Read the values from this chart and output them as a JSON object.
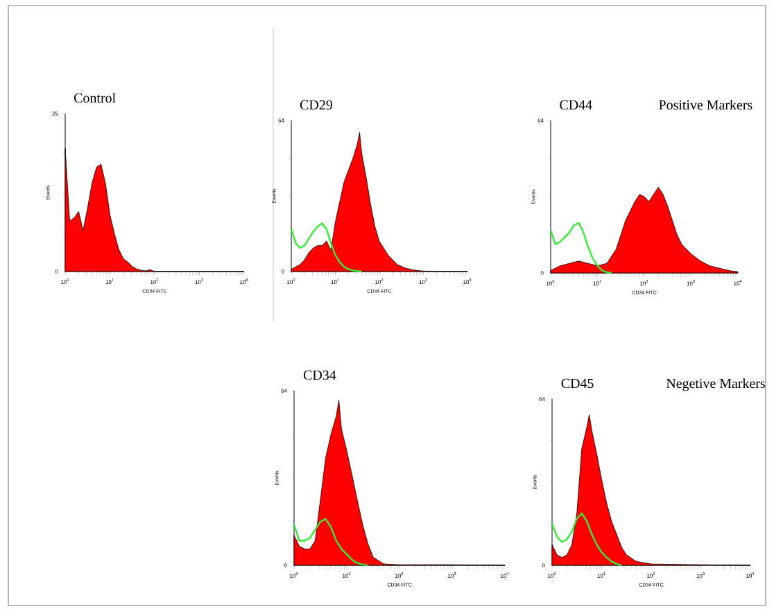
{
  "chart_data": [
    {
      "type": "area",
      "title": "Control",
      "xlabel": "CD34 FITC",
      "ylabel": "Events",
      "log": "x",
      "xlim": [
        1,
        10000
      ],
      "xticks": [
        {
          "value": 1,
          "label": "10$^{0}$"
        },
        {
          "value": 10,
          "label": "10$^{1}$"
        },
        {
          "value": 100,
          "label": "10$^{2}$"
        },
        {
          "value": 1000,
          "label": "10$^{3}$"
        },
        {
          "value": 10000,
          "label": "10$^{4}$"
        }
      ],
      "ylim": [
        0,
        25
      ],
      "yticks": [
        0,
        {
          "value": 6.25,
          "label": null
        },
        {
          "value": 12.5,
          "label": null
        },
        {
          "value": 18.75,
          "label": null
        },
        25
      ],
      "series": [
        {
          "color": "#ff0000",
          "x": [
            1,
            1.26,
            1.58,
            2,
            2.51,
            3.16,
            3.98,
            5.01,
            6.31,
            7.94,
            10,
            12.6,
            15.8,
            20,
            25.1,
            31.6,
            39.8,
            50.1,
            63.1,
            79.4,
            100,
            1000,
            10000
          ],
          "values": [
            19.5,
            8,
            8.5,
            9.5,
            6.5,
            10,
            14,
            16.5,
            17,
            14,
            9,
            6,
            3.5,
            2,
            1.5,
            0.8,
            0.4,
            0.2,
            0.1,
            0.3,
            0,
            0,
            0
          ]
        }
      ]
    },
    {
      "type": "area",
      "title": "CD29",
      "xlabel": "CD34 FITC",
      "ylabel": "Events",
      "log": "x",
      "xlim": [
        1,
        10000
      ],
      "xticks": [
        {
          "value": 1,
          "label": "10$^{0}$"
        },
        {
          "value": 10,
          "label": "10$^{1}$"
        },
        {
          "value": 100,
          "label": "10$^{2}$"
        },
        {
          "value": 1000,
          "label": "10$^{3}$"
        },
        {
          "value": 10000,
          "label": "10$^{4}$"
        }
      ],
      "ylim": [
        0,
        64
      ],
      "yticks": [
        0,
        {
          "value": 16,
          "label": null
        },
        {
          "value": 32,
          "label": null
        },
        {
          "value": 48,
          "label": null
        },
        64
      ],
      "series": [
        {
          "color": "#ff0000",
          "x": [
            1,
            1.26,
            1.58,
            2,
            2.51,
            3.16,
            3.98,
            5.01,
            6.31,
            7.94,
            10,
            15.8,
            25.1,
            31.6,
            35.5,
            39.8,
            50.1,
            63.1,
            79.4,
            100,
            158,
            251,
            398,
            631,
            1000,
            10000
          ],
          "values": [
            1,
            2,
            3,
            5,
            8,
            10,
            11,
            11,
            13,
            9,
            21,
            38,
            48,
            54,
            59,
            50,
            40,
            28.5,
            19,
            12.8,
            7,
            3,
            1.4,
            0.6,
            0.2,
            0
          ]
        },
        {
          "type": "line",
          "color": "#33ee33",
          "x": [
            1,
            1.26,
            1.58,
            2,
            2.51,
            3.16,
            3.98,
            5.01,
            6.31,
            7.94,
            10,
            12.6,
            15.8,
            20,
            25.1,
            31.6,
            39.8
          ],
          "values": [
            18,
            12,
            10,
            11,
            14,
            17,
            19,
            20.5,
            18,
            12,
            7,
            4,
            2,
            1,
            0.5,
            0.2,
            0
          ]
        }
      ]
    },
    {
      "type": "area",
      "title": "CD44",
      "annotations": [
        "Positive Markers"
      ],
      "xlabel": "CD34 FITC",
      "ylabel": "Events",
      "log": "x",
      "xlim": [
        1,
        10000
      ],
      "xticks": [
        {
          "value": 1,
          "label": "10$^{0}$"
        },
        {
          "value": 10,
          "label": "10$^{1}$"
        },
        {
          "value": 100,
          "label": "10$^{2}$"
        },
        {
          "value": 1000,
          "label": "10$^{3}$"
        },
        {
          "value": 10000,
          "label": "10$^{4}$"
        }
      ],
      "ylim": [
        0,
        64
      ],
      "yticks": [
        0,
        {
          "value": 16,
          "label": null
        },
        {
          "value": 32,
          "label": null
        },
        {
          "value": 48,
          "label": null
        },
        64
      ],
      "series": [
        {
          "color": "#ff0000",
          "x": [
            1,
            1.58,
            2.51,
            3.98,
            6.31,
            10,
            15.8,
            25.1,
            39.8,
            63.1,
            79.4,
            100,
            126,
            158,
            200,
            251,
            316,
            398,
            501,
            631,
            1000,
            1585,
            2512,
            3981,
            6310,
            10000
          ],
          "values": [
            1,
            3,
            4,
            5,
            4,
            3,
            4,
            10,
            22,
            30,
            33,
            32,
            30,
            33,
            36,
            33,
            28,
            22,
            16,
            12,
            8,
            5,
            3,
            2,
            1,
            0.5
          ]
        },
        {
          "type": "line",
          "color": "#33ee33",
          "x": [
            1,
            1.26,
            1.58,
            2,
            2.51,
            3.16,
            3.98,
            5.01,
            6.31,
            7.94,
            10,
            12.6,
            15.8,
            20
          ],
          "values": [
            18,
            12,
            13,
            15,
            17,
            20,
            21,
            17,
            11,
            6,
            3,
            1,
            0.3,
            0
          ]
        }
      ]
    },
    {
      "type": "area",
      "title": "CD34",
      "xlabel": "CD34 FITC",
      "ylabel": "Events",
      "log": "x",
      "xlim": [
        1,
        10000
      ],
      "xticks": [
        {
          "value": 1,
          "label": "10$^{0}$"
        },
        {
          "value": 10,
          "label": "10$^{1}$"
        },
        {
          "value": 100,
          "label": "10$^{2}$"
        },
        {
          "value": 1000,
          "label": "10$^{3}$"
        },
        {
          "value": 10000,
          "label": "10$^{4}$"
        }
      ],
      "ylim": [
        0,
        64
      ],
      "yticks": [
        0,
        {
          "value": 16,
          "label": null
        },
        {
          "value": 32,
          "label": null
        },
        {
          "value": 48,
          "label": null
        },
        64
      ],
      "series": [
        {
          "color": "#ff0000",
          "x": [
            1,
            1.26,
            1.58,
            2,
            2.51,
            3.16,
            3.98,
            5.01,
            6.31,
            7.08,
            7.94,
            10,
            12.6,
            15.8,
            20,
            25.1,
            31.6,
            50.1,
            100,
            1000,
            10000
          ],
          "values": [
            11,
            7,
            6,
            6,
            9,
            24,
            39.5,
            48,
            54.7,
            60.6,
            50,
            42,
            33,
            24,
            15,
            8,
            3,
            0.5,
            0.2,
            0.2,
            0
          ]
        },
        {
          "type": "line",
          "color": "#33ee33",
          "x": [
            1,
            1.26,
            1.58,
            2,
            2.51,
            3.16,
            3.98,
            5.01,
            6.31,
            7.94,
            10,
            12.6,
            15.8,
            20,
            25.1
          ],
          "values": [
            15,
            9,
            9,
            10,
            13,
            16,
            17,
            14,
            9,
            6,
            4,
            2,
            0.8,
            0.3,
            0
          ]
        }
      ]
    },
    {
      "type": "area",
      "title": "CD45",
      "annotations": [
        "Negetive Markers"
      ],
      "xlabel": "CD34 FITC",
      "ylabel": "Events",
      "log": "x",
      "xlim": [
        1,
        10000
      ],
      "xticks": [
        {
          "value": 1,
          "label": "10$^{0}$"
        },
        {
          "value": 10,
          "label": "10$^{1}$"
        },
        {
          "value": 100,
          "label": "10$^{2}$"
        },
        {
          "value": 1000,
          "label": "10$^{3}$"
        },
        {
          "value": 10000,
          "label": "10$^{4}$"
        }
      ],
      "ylim": [
        0,
        64
      ],
      "yticks": [
        0,
        {
          "value": 16,
          "label": null
        },
        {
          "value": 32,
          "label": null
        },
        {
          "value": 48,
          "label": null
        },
        64
      ],
      "series": [
        {
          "color": "#ff0000",
          "x": [
            1,
            1.26,
            1.58,
            2,
            2.51,
            3.16,
            3.98,
            5.01,
            5.62,
            6.31,
            7.94,
            10,
            12.6,
            15.8,
            20,
            25.1,
            31.6,
            50.1,
            100,
            1000,
            10000
          ],
          "values": [
            8,
            4,
            3,
            4,
            8,
            20,
            45,
            53,
            58,
            52,
            43,
            33,
            24,
            17,
            12,
            7,
            4,
            1.5,
            0.5,
            0.2,
            0
          ]
        },
        {
          "type": "line",
          "color": "#33ee33",
          "x": [
            1,
            1.26,
            1.58,
            2,
            2.51,
            3.16,
            3.98,
            5.01,
            6.31,
            7.94,
            10,
            12.6,
            15.8,
            20,
            25.1
          ],
          "values": [
            16,
            11,
            9,
            10,
            13,
            18,
            20,
            17,
            12,
            8,
            5,
            3,
            1.5,
            0.5,
            0
          ]
        }
      ]
    }
  ]
}
